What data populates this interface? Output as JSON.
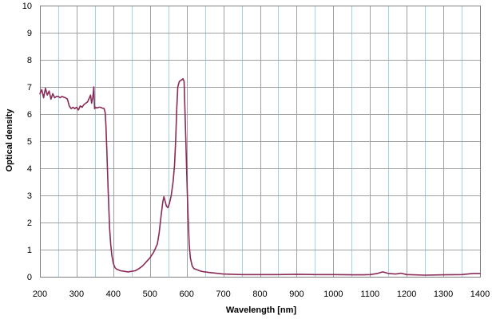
{
  "chart_data": {
    "type": "line",
    "title": "",
    "xlabel": "Wavelength [nm]",
    "ylabel": "Optical density",
    "xlim": [
      200,
      1400
    ],
    "ylim": [
      0,
      10
    ],
    "x_ticks": [
      "200",
      "300",
      "400",
      "500",
      "600",
      "700",
      "800",
      "900",
      "1000",
      "1100",
      "1200",
      "1300",
      "1400"
    ],
    "y_ticks": [
      "0",
      "1",
      "2",
      "3",
      "4",
      "5",
      "6",
      "7",
      "8",
      "9",
      "10"
    ],
    "grid": {
      "major_x": true,
      "minor_x": true,
      "major_y": true
    },
    "legend": "none",
    "colors": {
      "line": "#8b2a57",
      "major_grid": "#a0a0a0",
      "minor_grid": "#9fd3ec",
      "plot_border": "#808080",
      "background": "#ffffff"
    },
    "series": [
      {
        "points": [
          [
            200,
            6.75
          ],
          [
            205,
            6.9
          ],
          [
            210,
            6.6
          ],
          [
            215,
            6.95
          ],
          [
            220,
            6.7
          ],
          [
            225,
            6.85
          ],
          [
            230,
            6.55
          ],
          [
            235,
            6.75
          ],
          [
            240,
            6.6
          ],
          [
            245,
            6.65
          ],
          [
            250,
            6.65
          ],
          [
            255,
            6.6
          ],
          [
            260,
            6.65
          ],
          [
            265,
            6.62
          ],
          [
            270,
            6.6
          ],
          [
            275,
            6.55
          ],
          [
            280,
            6.3
          ],
          [
            285,
            6.2
          ],
          [
            290,
            6.25
          ],
          [
            295,
            6.2
          ],
          [
            300,
            6.25
          ],
          [
            305,
            6.15
          ],
          [
            310,
            6.3
          ],
          [
            315,
            6.25
          ],
          [
            320,
            6.35
          ],
          [
            325,
            6.4
          ],
          [
            330,
            6.45
          ],
          [
            335,
            6.6
          ],
          [
            338,
            6.7
          ],
          [
            341,
            6.4
          ],
          [
            344,
            6.6
          ],
          [
            347,
            7.0
          ],
          [
            349,
            6.2
          ],
          [
            352,
            6.25
          ],
          [
            355,
            6.22
          ],
          [
            360,
            6.25
          ],
          [
            365,
            6.25
          ],
          [
            370,
            6.22
          ],
          [
            375,
            6.2
          ],
          [
            378,
            6.05
          ],
          [
            380,
            5.6
          ],
          [
            382,
            4.8
          ],
          [
            384,
            4.0
          ],
          [
            386,
            3.2
          ],
          [
            388,
            2.5
          ],
          [
            390,
            1.8
          ],
          [
            393,
            1.2
          ],
          [
            396,
            0.8
          ],
          [
            400,
            0.5
          ],
          [
            405,
            0.33
          ],
          [
            410,
            0.27
          ],
          [
            420,
            0.22
          ],
          [
            430,
            0.2
          ],
          [
            440,
            0.18
          ],
          [
            450,
            0.2
          ],
          [
            460,
            0.22
          ],
          [
            470,
            0.3
          ],
          [
            480,
            0.4
          ],
          [
            490,
            0.55
          ],
          [
            500,
            0.7
          ],
          [
            505,
            0.8
          ],
          [
            510,
            0.9
          ],
          [
            515,
            1.05
          ],
          [
            520,
            1.2
          ],
          [
            525,
            1.6
          ],
          [
            530,
            2.2
          ],
          [
            535,
            2.75
          ],
          [
            538,
            2.95
          ],
          [
            541,
            2.8
          ],
          [
            545,
            2.6
          ],
          [
            549,
            2.55
          ],
          [
            553,
            2.7
          ],
          [
            558,
            3.0
          ],
          [
            563,
            3.5
          ],
          [
            567,
            4.1
          ],
          [
            570,
            5.0
          ],
          [
            573,
            6.2
          ],
          [
            576,
            7.0
          ],
          [
            580,
            7.2
          ],
          [
            585,
            7.25
          ],
          [
            590,
            7.3
          ],
          [
            593,
            7.2
          ],
          [
            595,
            6.3
          ],
          [
            598,
            5.0
          ],
          [
            601,
            3.5
          ],
          [
            604,
            2.2
          ],
          [
            607,
            1.2
          ],
          [
            610,
            0.7
          ],
          [
            615,
            0.4
          ],
          [
            620,
            0.3
          ],
          [
            630,
            0.25
          ],
          [
            640,
            0.2
          ],
          [
            650,
            0.18
          ],
          [
            660,
            0.16
          ],
          [
            680,
            0.13
          ],
          [
            700,
            0.1
          ],
          [
            750,
            0.08
          ],
          [
            800,
            0.08
          ],
          [
            850,
            0.08
          ],
          [
            900,
            0.09
          ],
          [
            950,
            0.08
          ],
          [
            1000,
            0.08
          ],
          [
            1050,
            0.07
          ],
          [
            1080,
            0.07
          ],
          [
            1100,
            0.08
          ],
          [
            1120,
            0.12
          ],
          [
            1135,
            0.18
          ],
          [
            1150,
            0.12
          ],
          [
            1170,
            0.1
          ],
          [
            1185,
            0.13
          ],
          [
            1200,
            0.08
          ],
          [
            1250,
            0.06
          ],
          [
            1300,
            0.07
          ],
          [
            1350,
            0.08
          ],
          [
            1380,
            0.12
          ],
          [
            1400,
            0.12
          ]
        ]
      }
    ]
  }
}
